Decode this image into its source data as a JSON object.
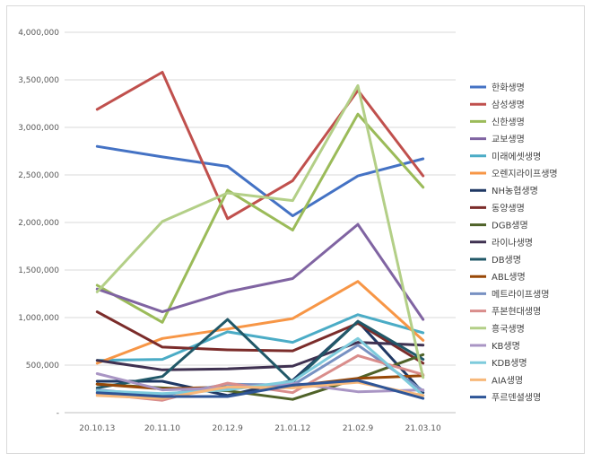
{
  "chart_data": {
    "type": "line",
    "title": "",
    "xlabel": "",
    "ylabel": "",
    "ylim": [
      0,
      4000000
    ],
    "yticks": [
      0,
      500000,
      1000000,
      1500000,
      2000000,
      2500000,
      3000000,
      3500000,
      4000000
    ],
    "ytick_labels": [
      "-",
      "500,000",
      "1,000,000",
      "1,500,000",
      "2,000,000",
      "2,500,000",
      "3,000,000",
      "3,500,000",
      "4,000,000"
    ],
    "categories": [
      "20.10.13",
      "20.11.10",
      "20.12.9",
      "21.01.12",
      "21.02.9",
      "21.03.10"
    ],
    "grid": true,
    "legend_position": "right",
    "series": [
      {
        "name": "한화생명",
        "color": "#4472c4",
        "values": [
          2800000,
          2690000,
          2590000,
          2070000,
          2490000,
          2670000
        ]
      },
      {
        "name": "삼성생명",
        "color": "#c0504d",
        "values": [
          3190000,
          3580000,
          2040000,
          2440000,
          3390000,
          2490000
        ]
      },
      {
        "name": "신한생명",
        "color": "#9bbb59",
        "values": [
          1340000,
          950000,
          2340000,
          1920000,
          3140000,
          2370000
        ]
      },
      {
        "name": "교보생명",
        "color": "#8064a2",
        "values": [
          1300000,
          1060000,
          1270000,
          1410000,
          1980000,
          980000
        ]
      },
      {
        "name": "미래에셋생명",
        "color": "#4bacc6",
        "values": [
          550000,
          560000,
          850000,
          740000,
          1030000,
          840000
        ]
      },
      {
        "name": "오렌지라이프생명",
        "color": "#f79646",
        "values": [
          520000,
          780000,
          880000,
          990000,
          1380000,
          760000
        ]
      },
      {
        "name": "NH농협생명",
        "color": "#1f3864",
        "values": [
          330000,
          330000,
          180000,
          340000,
          960000,
          210000
        ]
      },
      {
        "name": "동양생명",
        "color": "#7b2c2a",
        "values": [
          1060000,
          690000,
          660000,
          650000,
          940000,
          520000
        ]
      },
      {
        "name": "DGB생명",
        "color": "#4f6228",
        "values": [
          300000,
          260000,
          230000,
          140000,
          360000,
          610000
        ]
      },
      {
        "name": "라이나생명",
        "color": "#3f3151",
        "values": [
          550000,
          450000,
          460000,
          490000,
          740000,
          710000
        ]
      },
      {
        "name": "DB생명",
        "color": "#215868",
        "values": [
          260000,
          380000,
          980000,
          320000,
          960000,
          560000
        ]
      },
      {
        "name": "ABL생명",
        "color": "#984807",
        "values": [
          300000,
          250000,
          270000,
          280000,
          360000,
          390000
        ]
      },
      {
        "name": "메트라이프생명",
        "color": "#7891c2",
        "values": [
          240000,
          180000,
          300000,
          290000,
          710000,
          230000
        ]
      },
      {
        "name": "푸본현대생명",
        "color": "#d98d8b",
        "values": [
          200000,
          130000,
          310000,
          210000,
          600000,
          400000
        ]
      },
      {
        "name": "흥국생명",
        "color": "#b3cf87",
        "values": [
          1270000,
          2010000,
          2310000,
          2230000,
          3440000,
          370000
        ]
      },
      {
        "name": "KB생명",
        "color": "#a995c4",
        "values": [
          410000,
          240000,
          260000,
          310000,
          220000,
          240000
        ]
      },
      {
        "name": "KDB생명",
        "color": "#7ecbdc",
        "values": [
          230000,
          200000,
          240000,
          330000,
          780000,
          180000
        ]
      },
      {
        "name": "AIA생명",
        "color": "#f7b87a",
        "values": [
          180000,
          150000,
          270000,
          260000,
          320000,
          180000
        ]
      },
      {
        "name": "푸르덴셜생명",
        "color": "#2e5597",
        "values": [
          210000,
          170000,
          170000,
          290000,
          340000,
          150000
        ]
      }
    ]
  }
}
